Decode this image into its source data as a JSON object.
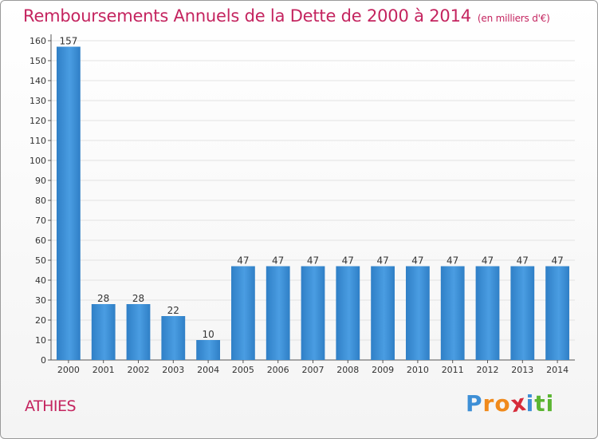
{
  "chart_data": {
    "type": "bar",
    "title": "Remboursements Annuels de la Dette de 2000 à 2014",
    "unit_note": "(en milliers d'€)",
    "categories": [
      "2000",
      "2001",
      "2002",
      "2003",
      "2004",
      "2005",
      "2006",
      "2007",
      "2008",
      "2009",
      "2010",
      "2011",
      "2012",
      "2013",
      "2014"
    ],
    "values": [
      157,
      28,
      28,
      22,
      10,
      47,
      47,
      47,
      47,
      47,
      47,
      47,
      47,
      47,
      47
    ],
    "ylim": [
      0,
      160
    ],
    "yticks": [
      0,
      10,
      20,
      30,
      40,
      50,
      60,
      70,
      80,
      90,
      100,
      110,
      120,
      130,
      140,
      150,
      160
    ],
    "grid": true,
    "bar_color": "#3a8fd6"
  },
  "footer": {
    "town": "ATHIES",
    "logo_letters": [
      "P",
      "r",
      "o",
      "x",
      "i",
      "t",
      "i"
    ],
    "logo_colors": [
      "#3e8fd6",
      "#f08a1c",
      "#f08a1c",
      "#d62b3a",
      "#3e8fd6",
      "#5bb532",
      "#5bb532"
    ]
  }
}
